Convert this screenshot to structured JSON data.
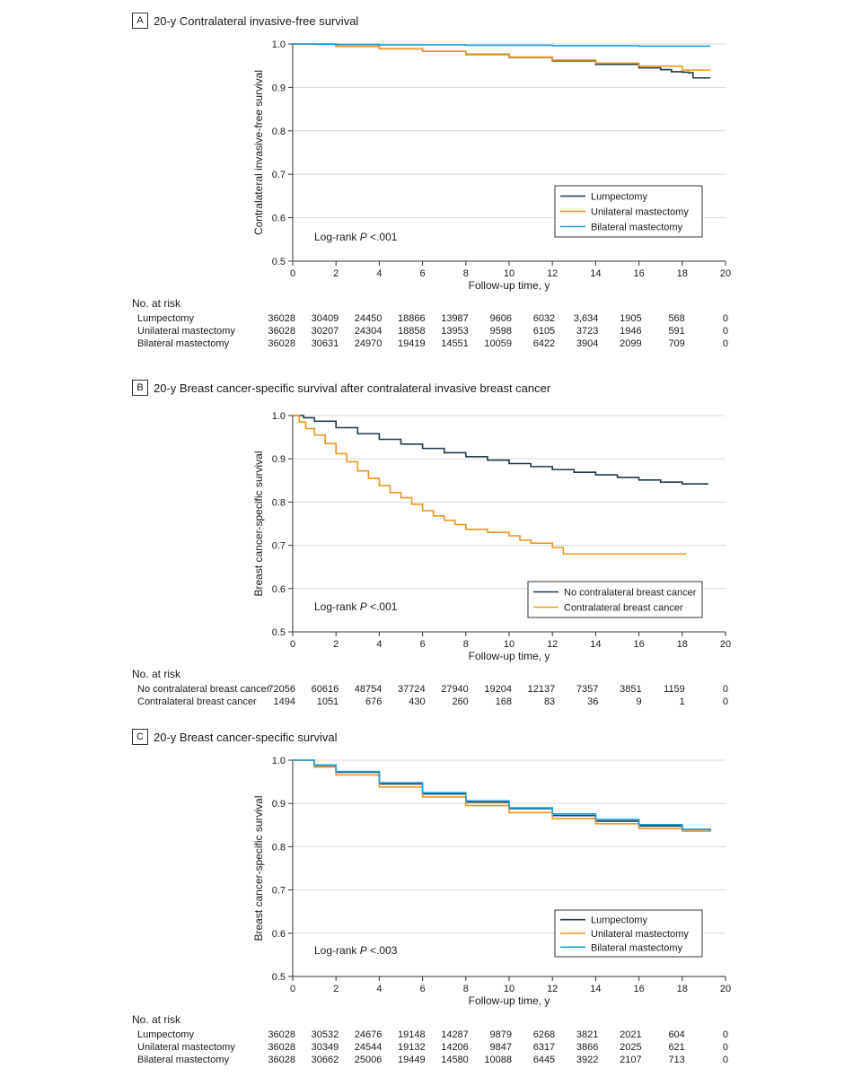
{
  "chart_data": [
    {
      "type": "line",
      "panel_letter": "A",
      "title": "20-y Contralateral invasive-free survival",
      "ylabel": "Contralateral invasive-free survival",
      "xlabel": "Follow-up time, y",
      "xlim": [
        0,
        20
      ],
      "ylim": [
        0.5,
        1.0
      ],
      "xticks": [
        0,
        2,
        4,
        6,
        8,
        10,
        12,
        14,
        16,
        18,
        20
      ],
      "yticks": [
        0.5,
        0.6,
        0.7,
        0.8,
        0.9,
        1.0
      ],
      "ytick_labels": [
        "0.5",
        "0.6",
        "0.7",
        "0.8",
        "0.9",
        "1.0"
      ],
      "grid": true,
      "legend_position": "lower-right",
      "annotation_prefix": "Log-rank ",
      "annotation_italic": "P",
      "annotation_suffix": " <.001",
      "series": [
        {
          "name": "Lumpectomy",
          "color": "#1d3a4a",
          "x": [
            0,
            2,
            4,
            6,
            8,
            10,
            12,
            14,
            16,
            17,
            17.5,
            18,
            18.3,
            18.5,
            19,
            19.3
          ],
          "y": [
            1.0,
            0.995,
            0.989,
            0.983,
            0.976,
            0.969,
            0.961,
            0.953,
            0.945,
            0.941,
            0.936,
            0.935,
            0.934,
            0.922,
            0.922,
            0.922
          ]
        },
        {
          "name": "Unilateral mastectomy",
          "color": "#f0961e",
          "x": [
            0,
            2,
            4,
            6,
            8,
            10,
            12,
            14,
            16,
            18,
            19.3
          ],
          "y": [
            1.0,
            0.995,
            0.989,
            0.983,
            0.977,
            0.97,
            0.963,
            0.956,
            0.949,
            0.94,
            0.94
          ]
        },
        {
          "name": "Bilateral mastectomy",
          "color": "#1ea0dc",
          "x": [
            0,
            1,
            4,
            8,
            12,
            16,
            19.3
          ],
          "y": [
            1.0,
            0.999,
            0.998,
            0.997,
            0.996,
            0.995,
            0.995
          ]
        }
      ],
      "risk_table": {
        "header": "No. at risk",
        "rows": [
          {
            "label": "Lumpectomy",
            "values": [
              "36028",
              "30409",
              "24450",
              "18866",
              "13987",
              "9606",
              "6032",
              "3,634",
              "1905",
              "568",
              "0"
            ]
          },
          {
            "label": "Unilateral mastectomy",
            "values": [
              "36028",
              "30207",
              "24304",
              "18858",
              "13953",
              "9598",
              "6105",
              "3723",
              "1946",
              "591",
              "0"
            ]
          },
          {
            "label": "Bilateral mastectomy",
            "values": [
              "36028",
              "30631",
              "24970",
              "19419",
              "14551",
              "10059",
              "6422",
              "3904",
              "2099",
              "709",
              "0"
            ]
          }
        ]
      }
    },
    {
      "type": "line",
      "panel_letter": "B",
      "title": "20-y Breast cancer-specific survival after contralateral invasive breast cancer",
      "ylabel": "Breast cancer-specific survival",
      "xlabel": "Follow-up time, y",
      "xlim": [
        0,
        20
      ],
      "ylim": [
        0.5,
        1.0
      ],
      "xticks": [
        0,
        2,
        4,
        6,
        8,
        10,
        12,
        14,
        16,
        18,
        20
      ],
      "yticks": [
        0.5,
        0.6,
        0.7,
        0.8,
        0.9,
        1.0
      ],
      "ytick_labels": [
        "0.5",
        "0.6",
        "0.7",
        "0.8",
        "0.9",
        "1.0"
      ],
      "grid": true,
      "legend_position": "lower-right",
      "annotation_prefix": "Log-rank ",
      "annotation_italic": "P",
      "annotation_suffix": " <.001",
      "series": [
        {
          "name": "No contralateral breast cancer",
          "color": "#1d3a4a",
          "x": [
            0,
            0.5,
            1,
            2,
            3,
            4,
            5,
            6,
            7,
            8,
            9,
            10,
            11,
            12,
            13,
            14,
            15,
            16,
            17,
            18,
            19.2
          ],
          "y": [
            1.0,
            0.995,
            0.987,
            0.972,
            0.958,
            0.945,
            0.934,
            0.924,
            0.914,
            0.905,
            0.897,
            0.889,
            0.882,
            0.875,
            0.869,
            0.863,
            0.857,
            0.851,
            0.846,
            0.842,
            0.842
          ]
        },
        {
          "name": "Contralateral breast cancer",
          "color": "#f0961e",
          "x": [
            0,
            0.3,
            0.6,
            1,
            1.5,
            2,
            2.5,
            3,
            3.5,
            4,
            4.5,
            5,
            5.5,
            6,
            6.5,
            7,
            7.5,
            8,
            9,
            10,
            10.5,
            11,
            12,
            12.5,
            13,
            15,
            18.2
          ],
          "y": [
            1.0,
            0.985,
            0.97,
            0.955,
            0.935,
            0.912,
            0.893,
            0.872,
            0.855,
            0.838,
            0.822,
            0.81,
            0.795,
            0.78,
            0.768,
            0.758,
            0.748,
            0.737,
            0.73,
            0.722,
            0.712,
            0.705,
            0.695,
            0.68,
            0.68,
            0.68,
            0.68
          ]
        }
      ],
      "risk_table": {
        "header": "No. at risk",
        "rows": [
          {
            "label": "No contralateral breast cancer",
            "values": [
              "72056",
              "60616",
              "48754",
              "37724",
              "27940",
              "19204",
              "12137",
              "7357",
              "3851",
              "1159",
              "0"
            ]
          },
          {
            "label": "Contralateral breast cancer",
            "values": [
              "1494",
              "1051",
              "676",
              "430",
              "260",
              "168",
              "83",
              "36",
              "9",
              "1",
              "0"
            ]
          }
        ]
      }
    },
    {
      "type": "line",
      "panel_letter": "C",
      "title": "20-y Breast cancer-specific survival",
      "ylabel": "Breast cancer-specific survival",
      "xlabel": "Follow-up time, y",
      "xlim": [
        0,
        20
      ],
      "ylim": [
        0.5,
        1.0
      ],
      "xticks": [
        0,
        2,
        4,
        6,
        8,
        10,
        12,
        14,
        16,
        18,
        20
      ],
      "yticks": [
        0.5,
        0.6,
        0.7,
        0.8,
        0.9,
        1.0
      ],
      "ytick_labels": [
        "0.5",
        "0.6",
        "0.7",
        "0.8",
        "0.9",
        "1.0"
      ],
      "grid": true,
      "legend_position": "lower-right",
      "annotation_prefix": "Log-rank ",
      "annotation_italic": "P",
      "annotation_suffix": " <.003",
      "series": [
        {
          "name": "Lumpectomy",
          "color": "#1d3a4a",
          "x": [
            0,
            1,
            2,
            4,
            6,
            8,
            10,
            12,
            14,
            16,
            18,
            19.3
          ],
          "y": [
            1.0,
            0.988,
            0.972,
            0.945,
            0.922,
            0.903,
            0.888,
            0.872,
            0.859,
            0.848,
            0.84,
            0.838
          ]
        },
        {
          "name": "Unilateral mastectomy",
          "color": "#f0961e",
          "x": [
            0,
            1,
            2,
            4,
            6,
            8,
            10,
            12,
            14,
            16,
            18,
            19.3
          ],
          "y": [
            1.0,
            0.984,
            0.966,
            0.938,
            0.915,
            0.895,
            0.879,
            0.865,
            0.853,
            0.842,
            0.836,
            0.835
          ]
        },
        {
          "name": "Bilateral mastectomy",
          "color": "#1ea0dc",
          "x": [
            0,
            1,
            2,
            4,
            6,
            8,
            10,
            12,
            14,
            16,
            18,
            19.3
          ],
          "y": [
            1.0,
            0.989,
            0.974,
            0.948,
            0.925,
            0.906,
            0.89,
            0.876,
            0.863,
            0.851,
            0.84,
            0.836
          ]
        }
      ],
      "risk_table": {
        "header": "No. at risk",
        "rows": [
          {
            "label": "Lumpectomy",
            "values": [
              "36028",
              "30532",
              "24676",
              "19148",
              "14287",
              "9879",
              "6268",
              "3821",
              "2021",
              "604",
              "0"
            ]
          },
          {
            "label": "Unilateral mastectomy",
            "values": [
              "36028",
              "30349",
              "24544",
              "19132",
              "14206",
              "9847",
              "6317",
              "3866",
              "2025",
              "621",
              "0"
            ]
          },
          {
            "label": "Bilateral mastectomy",
            "values": [
              "36028",
              "30662",
              "25006",
              "19449",
              "14580",
              "10088",
              "6445",
              "3922",
              "2107",
              "713",
              "0"
            ]
          }
        ]
      }
    }
  ]
}
